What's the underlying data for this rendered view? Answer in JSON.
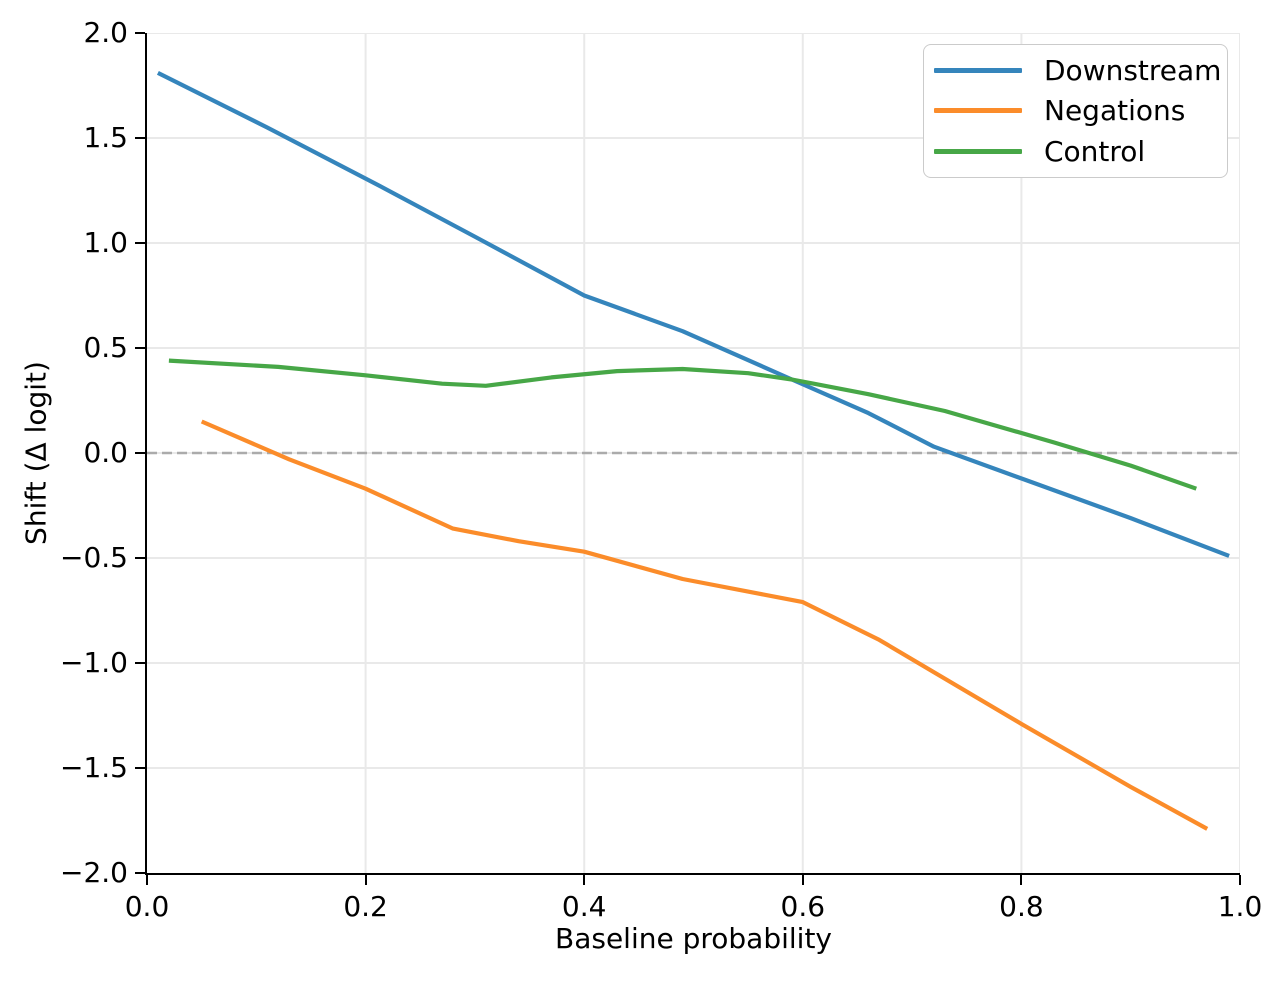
{
  "chart_data": {
    "type": "line",
    "title": "",
    "xlabel": "Baseline probability",
    "ylabel": "Shift (Δ logit)",
    "xlim": [
      0.0,
      1.0
    ],
    "ylim": [
      -2.0,
      2.0
    ],
    "grid": true,
    "legend_position": "upper right",
    "x_ticks": {
      "labels": [
        "0.0",
        "0.2",
        "0.4",
        "0.6",
        "0.8",
        "1.0"
      ],
      "values": [
        0.0,
        0.2,
        0.4,
        0.6,
        0.8,
        1.0
      ]
    },
    "y_ticks": {
      "labels": [
        "−2.0",
        "−1.5",
        "−1.0",
        "−0.5",
        "0.0",
        "0.5",
        "1.0",
        "1.5",
        "2.0"
      ],
      "values": [
        -2.0,
        -1.5,
        -1.0,
        -0.5,
        0.0,
        0.5,
        1.0,
        1.5,
        2.0
      ]
    },
    "zero_line": {
      "y": 0.0,
      "style": "dashed",
      "color": "#ababab"
    },
    "series": [
      {
        "name": "Downstream",
        "color": "#3585bc",
        "points": [
          [
            0.01,
            1.81
          ],
          [
            0.11,
            1.55
          ],
          [
            0.21,
            1.28
          ],
          [
            0.3,
            1.03
          ],
          [
            0.4,
            0.75
          ],
          [
            0.49,
            0.58
          ],
          [
            0.59,
            0.35
          ],
          [
            0.66,
            0.19
          ],
          [
            0.72,
            0.03
          ],
          [
            0.81,
            -0.14
          ],
          [
            0.9,
            -0.31
          ],
          [
            0.99,
            -0.49
          ]
        ]
      },
      {
        "name": "Negations",
        "color": "#fb8c2a",
        "points": [
          [
            0.05,
            0.15
          ],
          [
            0.13,
            -0.03
          ],
          [
            0.2,
            -0.17
          ],
          [
            0.28,
            -0.36
          ],
          [
            0.34,
            -0.42
          ],
          [
            0.4,
            -0.47
          ],
          [
            0.49,
            -0.6
          ],
          [
            0.56,
            -0.67
          ],
          [
            0.6,
            -0.71
          ],
          [
            0.67,
            -0.89
          ],
          [
            0.8,
            -1.29
          ],
          [
            0.9,
            -1.59
          ],
          [
            0.97,
            -1.79
          ]
        ]
      },
      {
        "name": "Control",
        "color": "#47a747",
        "points": [
          [
            0.02,
            0.44
          ],
          [
            0.12,
            0.41
          ],
          [
            0.2,
            0.37
          ],
          [
            0.27,
            0.33
          ],
          [
            0.31,
            0.32
          ],
          [
            0.37,
            0.36
          ],
          [
            0.43,
            0.39
          ],
          [
            0.49,
            0.4
          ],
          [
            0.55,
            0.38
          ],
          [
            0.59,
            0.35
          ],
          [
            0.66,
            0.28
          ],
          [
            0.73,
            0.2
          ],
          [
            0.83,
            0.05
          ],
          [
            0.9,
            -0.06
          ],
          [
            0.96,
            -0.17
          ]
        ]
      }
    ],
    "style": {
      "grid_color": "#e9e9e9",
      "line_width": 4.2,
      "zero_line_width": 2.6,
      "background": "#ffffff"
    }
  }
}
